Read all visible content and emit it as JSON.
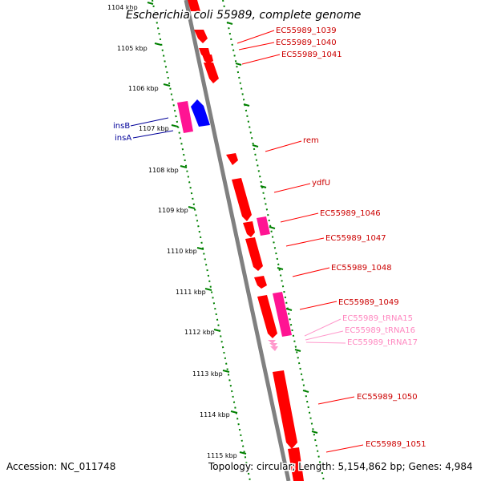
{
  "title": "Escherichia coli 55989, complete genome",
  "footer": {
    "accession": "Accession: NC_011748",
    "topology": "Topology: circular; Length: 5,154,862 bp; Genes: 4,984"
  },
  "colors": {
    "gene_red": "#ff0000",
    "gene_pink": "#ff1493",
    "gene_blue": "#0000ff",
    "trna_pink": "#ff99cc",
    "label_blue": "#000099",
    "tick_green": "#008000",
    "backbone": "#808080"
  },
  "ticks": [
    {
      "label": "1104 kbp"
    },
    {
      "label": "1105 kbp"
    },
    {
      "label": "1106 kbp"
    },
    {
      "label": "1107 kbp"
    },
    {
      "label": "1108 kbp"
    },
    {
      "label": "1109 kbp"
    },
    {
      "label": "1110 kbp"
    },
    {
      "label": "1111 kbp"
    },
    {
      "label": "1112 kbp"
    },
    {
      "label": "1113 kbp"
    },
    {
      "label": "1114 kbp"
    },
    {
      "label": "1115 kbp"
    }
  ],
  "gene_labels": [
    {
      "text": "EC55989_1039",
      "color": "red"
    },
    {
      "text": "EC55989_1040",
      "color": "red"
    },
    {
      "text": "EC55989_1041",
      "color": "red"
    },
    {
      "text": "insB",
      "color": "blue"
    },
    {
      "text": "insA",
      "color": "blue"
    },
    {
      "text": "rem",
      "color": "red"
    },
    {
      "text": "ydfU",
      "color": "red"
    },
    {
      "text": "EC55989_1046",
      "color": "red"
    },
    {
      "text": "EC55989_1047",
      "color": "red"
    },
    {
      "text": "EC55989_1048",
      "color": "red"
    },
    {
      "text": "EC55989_1049",
      "color": "red"
    },
    {
      "text": "EC55989_tRNA15",
      "color": "pink"
    },
    {
      "text": "EC55989_tRNA16",
      "color": "pink"
    },
    {
      "text": "EC55989_tRNA17",
      "color": "pink"
    },
    {
      "text": "EC55989_1050",
      "color": "red"
    },
    {
      "text": "EC55989_1051",
      "color": "red"
    }
  ]
}
